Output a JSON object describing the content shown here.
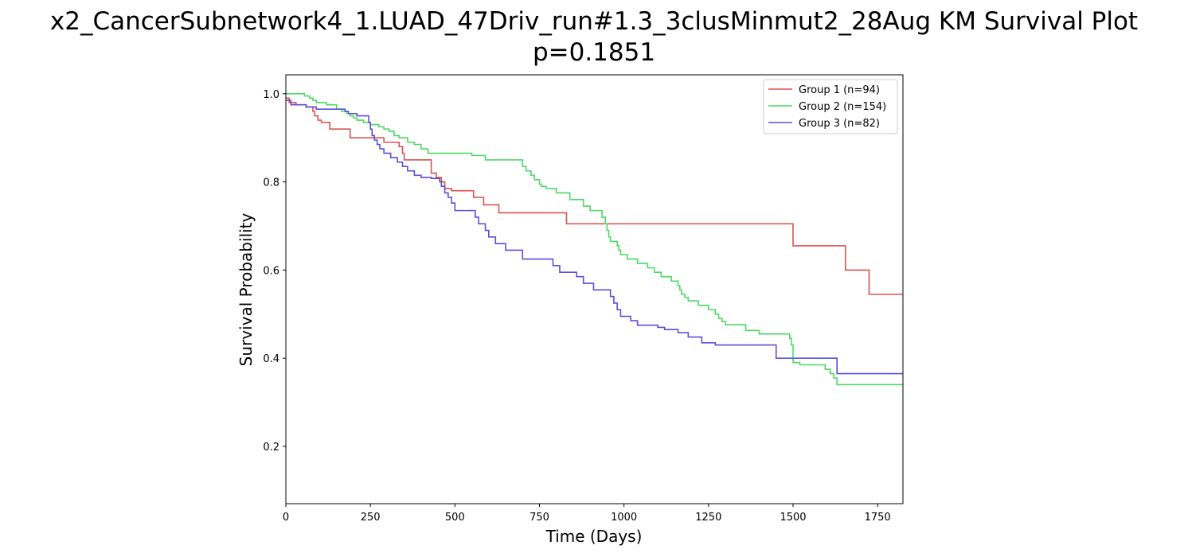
{
  "chart_data": {
    "type": "line",
    "title": "x2_CancerSubnetwork4_1.LUAD_47Driv_run#1.3_3clusMinmut2_28Aug KM Survival Plot",
    "subtitle": "p=0.1851",
    "xlabel": "Time (Days)",
    "ylabel": "Survival Probability",
    "xlim": [
      0,
      1825
    ],
    "ylim": [
      0.07,
      1.043
    ],
    "xticks": [
      0,
      250,
      500,
      750,
      1000,
      1250,
      1500,
      1750
    ],
    "yticks": [
      0.2,
      0.4,
      0.6,
      0.8,
      1.0
    ],
    "xtick_labels": [
      "0",
      "250",
      "500",
      "750",
      "1000",
      "1250",
      "1500",
      "1750"
    ],
    "ytick_labels": [
      "0.2",
      "0.4",
      "0.6",
      "0.8",
      "1.0"
    ],
    "grid": false,
    "legend_position": "top-right",
    "step": "post",
    "series": [
      {
        "name": "Group 1 (n=94)",
        "color": "#d9534f",
        "x": [
          0,
          10,
          30,
          60,
          80,
          85,
          95,
          105,
          130,
          190,
          290,
          335,
          345,
          350,
          430,
          445,
          460,
          470,
          490,
          555,
          585,
          630,
          830,
          1500,
          1655,
          1725,
          1825
        ],
        "y": [
          0.99,
          0.98,
          0.975,
          0.97,
          0.96,
          0.95,
          0.94,
          0.935,
          0.92,
          0.9,
          0.89,
          0.88,
          0.865,
          0.85,
          0.82,
          0.81,
          0.8,
          0.785,
          0.78,
          0.765,
          0.748,
          0.73,
          0.705,
          0.655,
          0.6,
          0.545,
          0.545
        ]
      },
      {
        "name": "Group 2 (n=154)",
        "color": "#4cd964",
        "x": [
          0,
          55,
          70,
          80,
          90,
          120,
          150,
          165,
          180,
          190,
          200,
          210,
          230,
          250,
          275,
          290,
          305,
          320,
          335,
          360,
          380,
          400,
          420,
          550,
          590,
          700,
          710,
          725,
          735,
          750,
          755,
          770,
          800,
          840,
          880,
          900,
          935,
          945,
          950,
          955,
          960,
          980,
          985,
          990,
          1010,
          1040,
          1070,
          1090,
          1110,
          1140,
          1160,
          1165,
          1170,
          1180,
          1190,
          1220,
          1250,
          1270,
          1280,
          1290,
          1300,
          1360,
          1400,
          1490,
          1495,
          1500,
          1520,
          1595,
          1610,
          1620,
          1630,
          1825
        ],
        "y": [
          1.0,
          0.995,
          0.99,
          0.985,
          0.98,
          0.975,
          0.965,
          0.96,
          0.955,
          0.95,
          0.945,
          0.94,
          0.935,
          0.93,
          0.925,
          0.92,
          0.915,
          0.905,
          0.9,
          0.89,
          0.885,
          0.875,
          0.865,
          0.86,
          0.85,
          0.835,
          0.825,
          0.815,
          0.805,
          0.795,
          0.79,
          0.785,
          0.775,
          0.76,
          0.745,
          0.735,
          0.72,
          0.705,
          0.69,
          0.675,
          0.665,
          0.655,
          0.645,
          0.635,
          0.625,
          0.615,
          0.605,
          0.595,
          0.585,
          0.575,
          0.565,
          0.555,
          0.545,
          0.538,
          0.53,
          0.52,
          0.51,
          0.5,
          0.49,
          0.483,
          0.476,
          0.463,
          0.455,
          0.445,
          0.43,
          0.39,
          0.385,
          0.375,
          0.365,
          0.355,
          0.34,
          0.34
        ]
      },
      {
        "name": "Group 3 (n=82)",
        "color": "#5b4fd8",
        "x": [
          0,
          15,
          60,
          90,
          175,
          185,
          210,
          245,
          250,
          255,
          262,
          270,
          278,
          290,
          310,
          330,
          345,
          360,
          380,
          400,
          430,
          455,
          460,
          470,
          480,
          490,
          500,
          560,
          570,
          590,
          600,
          620,
          650,
          700,
          790,
          810,
          860,
          880,
          910,
          960,
          970,
          980,
          990,
          1020,
          1040,
          1100,
          1120,
          1160,
          1190,
          1230,
          1270,
          1450,
          1495,
          1510,
          1600,
          1630,
          1825
        ],
        "y": [
          0.985,
          0.975,
          0.97,
          0.965,
          0.96,
          0.955,
          0.95,
          0.935,
          0.92,
          0.905,
          0.895,
          0.885,
          0.875,
          0.865,
          0.855,
          0.845,
          0.835,
          0.825,
          0.815,
          0.81,
          0.808,
          0.8,
          0.79,
          0.775,
          0.765,
          0.752,
          0.735,
          0.72,
          0.705,
          0.69,
          0.675,
          0.66,
          0.645,
          0.625,
          0.61,
          0.595,
          0.585,
          0.57,
          0.555,
          0.54,
          0.525,
          0.51,
          0.495,
          0.485,
          0.475,
          0.47,
          0.465,
          0.458,
          0.448,
          0.435,
          0.43,
          0.4,
          0.4,
          0.4,
          0.4,
          0.365,
          0.365
        ]
      }
    ]
  }
}
